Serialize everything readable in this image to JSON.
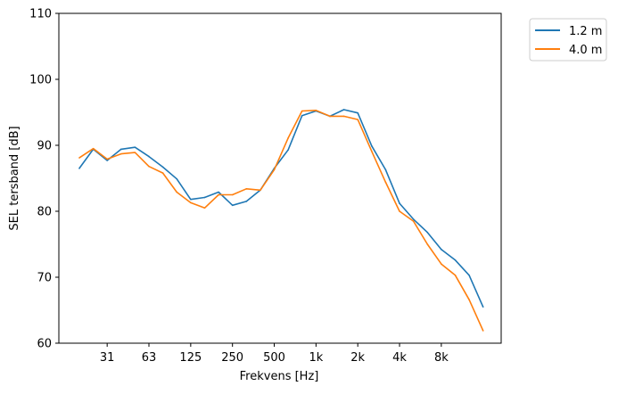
{
  "chart_data": {
    "type": "line",
    "title": "",
    "xlabel": "Frekvens [Hz]",
    "ylabel": "SEL tersband [dB]",
    "ylim": [
      60,
      110
    ],
    "yticks": [
      60,
      70,
      80,
      90,
      100,
      110
    ],
    "x_bands_hz": [
      20,
      25,
      31.5,
      40,
      50,
      63,
      80,
      100,
      125,
      160,
      200,
      250,
      315,
      400,
      500,
      630,
      800,
      1000,
      1250,
      1600,
      2000,
      2500,
      3150,
      4000,
      5000,
      6300,
      8000,
      10000,
      12500,
      16000
    ],
    "xticks": [
      {
        "index": 2,
        "label": "31"
      },
      {
        "index": 5,
        "label": "63"
      },
      {
        "index": 8,
        "label": "125"
      },
      {
        "index": 11,
        "label": "250"
      },
      {
        "index": 14,
        "label": "500"
      },
      {
        "index": 17,
        "label": "1k"
      },
      {
        "index": 20,
        "label": "2k"
      },
      {
        "index": 23,
        "label": "4k"
      },
      {
        "index": 26,
        "label": "8k"
      }
    ],
    "legend_position": "outside top-right",
    "grid": false,
    "series": [
      {
        "name": "1.2 m",
        "color": "#1f77b4",
        "values": [
          86.5,
          89.4,
          87.7,
          89.4,
          89.7,
          88.3,
          86.7,
          84.9,
          81.8,
          82.1,
          82.9,
          80.9,
          81.5,
          83.2,
          86.5,
          89.3,
          94.5,
          95.2,
          94.4,
          95.4,
          94.9,
          89.9,
          86.3,
          81.2,
          78.8,
          76.8,
          74.2,
          72.6,
          70.3,
          65.5
        ]
      },
      {
        "name": "4.0 m",
        "color": "#ff7f0e",
        "values": [
          88.1,
          89.5,
          87.9,
          88.7,
          88.9,
          86.8,
          85.8,
          82.9,
          81.3,
          80.5,
          82.5,
          82.5,
          83.4,
          83.2,
          86.3,
          91.1,
          95.2,
          95.3,
          94.4,
          94.4,
          93.9,
          89.1,
          84.4,
          80.0,
          78.5,
          75.0,
          72.0,
          70.3,
          66.6,
          61.9
        ]
      }
    ]
  }
}
